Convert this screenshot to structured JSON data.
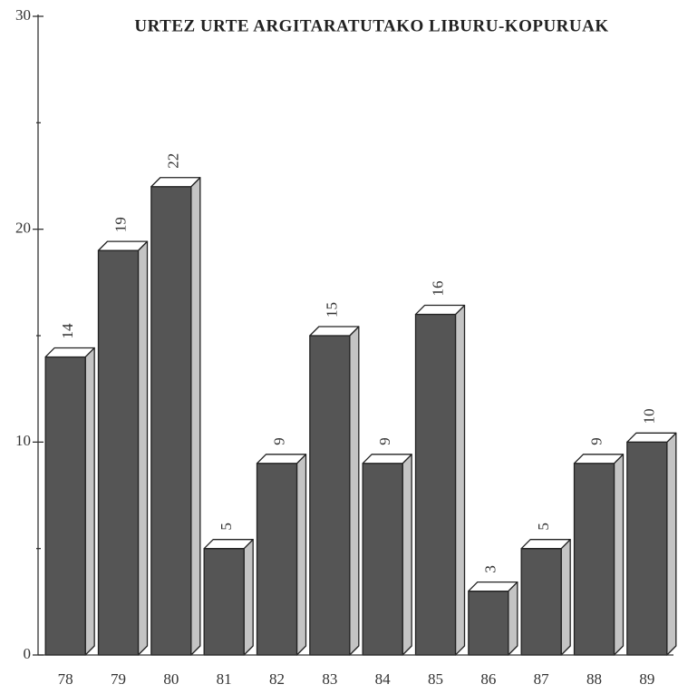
{
  "chart_data": {
    "type": "bar3d",
    "title": "URTEZ URTE ARGITARATUTAKO LIBURU-KOPURUAK",
    "categories": [
      "78",
      "79",
      "80",
      "81",
      "82",
      "83",
      "84",
      "85",
      "86",
      "87",
      "88",
      "89"
    ],
    "values": [
      14,
      19,
      22,
      5,
      9,
      15,
      9,
      16,
      3,
      5,
      9,
      10
    ],
    "color": "#555555",
    "side_color": "#c4c4c4",
    "top_color": "#ffffff",
    "ylim": [
      0,
      30
    ],
    "yticks": [
      0,
      10,
      20,
      30
    ],
    "minor_yticks": [
      5,
      15,
      25
    ],
    "grid": false
  }
}
